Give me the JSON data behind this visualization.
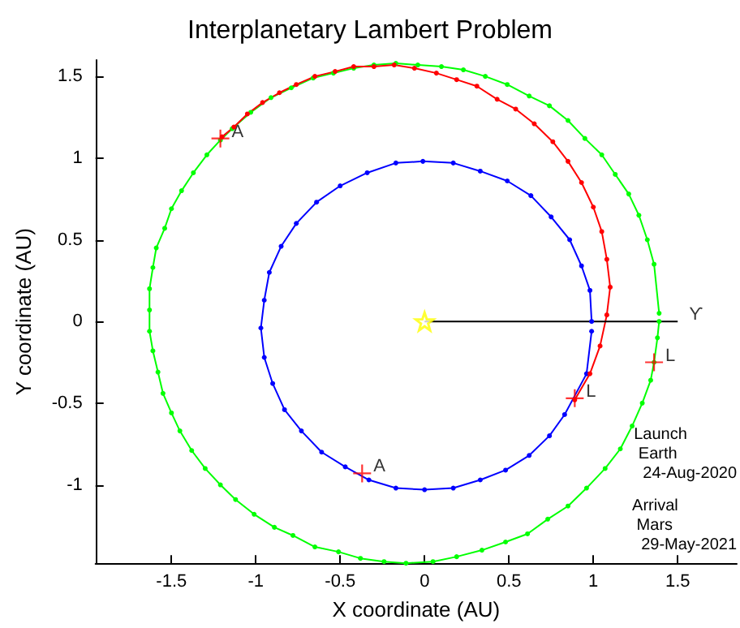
{
  "chart_data": {
    "type": "line",
    "title": "Interplanetary Lambert Problem",
    "xlabel": "X coordinate (AU)",
    "ylabel": "Y coordinate (AU)",
    "xlim": [
      -1.95,
      1.85
    ],
    "ylim": [
      -1.48,
      1.6
    ],
    "xticks": [
      -1.5,
      -1,
      -0.5,
      0,
      0.5,
      1,
      1.5
    ],
    "yticks": [
      -1,
      -0.5,
      0,
      0.5,
      1,
      1.5
    ],
    "grid": false,
    "marker": "circle",
    "line_style": "solid",
    "series": [
      {
        "color": "#0000ff",
        "x": [
          0.99,
          0.98,
          0.93,
          0.86,
          0.75,
          0.63,
          0.49,
          0.33,
          0.17,
          -0.01,
          -0.17,
          -0.34,
          -0.5,
          -0.64,
          -0.76,
          -0.85,
          -0.92,
          -0.95,
          -0.97,
          -0.95,
          -0.9,
          -0.83,
          -0.73,
          -0.61,
          -0.47,
          -0.33,
          -0.17,
          0,
          0.17,
          0.33,
          0.48,
          0.62,
          0.74,
          0.83,
          0.96,
          0.99
        ],
        "values": [
          0,
          0.19,
          0.34,
          0.5,
          0.64,
          0.77,
          0.86,
          0.92,
          0.97,
          0.98,
          0.97,
          0.91,
          0.83,
          0.73,
          0.6,
          0.46,
          0.3,
          0.13,
          -0.04,
          -0.22,
          -0.38,
          -0.54,
          -0.67,
          -0.8,
          -0.89,
          -0.97,
          -1.02,
          -1.03,
          -1.02,
          -0.97,
          -0.91,
          -0.82,
          -0.7,
          -0.57,
          -0.32,
          -0.06
        ]
      },
      {
        "color": "#00ff00",
        "x": [
          1.39,
          1.36,
          1.32,
          1.27,
          1.21,
          1.13,
          1.05,
          0.95,
          0.85,
          0.74,
          0.62,
          0.49,
          0.36,
          0.23,
          0.1,
          -0.04,
          -0.17,
          -0.3,
          -0.42,
          -0.54,
          -0.66,
          -0.79,
          -0.91,
          -1.03,
          -1.14,
          -1.21,
          -1.29,
          -1.37,
          -1.44,
          -1.5,
          -1.54,
          -1.59,
          -1.61,
          -1.63,
          -1.63,
          -1.63,
          -1.61,
          -1.58,
          -1.55,
          -1.5,
          -1.45,
          -1.38,
          -1.3,
          -1.21,
          -1.12,
          -1.01,
          -0.89,
          -0.78,
          -0.65,
          -0.51,
          -0.38,
          -0.24,
          -0.11,
          0.05,
          0.19,
          0.34,
          0.48,
          0.61,
          0.73,
          0.85,
          0.96,
          1.07,
          1.16,
          1.23,
          1.29,
          1.34,
          1.36,
          1.38,
          1.39
        ],
        "values": [
          0.05,
          0.35,
          0.5,
          0.65,
          0.78,
          0.9,
          1.02,
          1.12,
          1.23,
          1.32,
          1.38,
          1.45,
          1.5,
          1.54,
          1.56,
          1.57,
          1.58,
          1.57,
          1.55,
          1.52,
          1.49,
          1.43,
          1.37,
          1.28,
          1.18,
          1.11,
          1.02,
          0.91,
          0.8,
          0.69,
          0.57,
          0.45,
          0.33,
          0.2,
          0.07,
          -0.06,
          -0.18,
          -0.31,
          -0.44,
          -0.56,
          -0.67,
          -0.79,
          -0.9,
          -1,
          -1.09,
          -1.18,
          -1.26,
          -1.31,
          -1.38,
          -1.41,
          -1.45,
          -1.47,
          -1.48,
          -1.47,
          -1.44,
          -1.4,
          -1.35,
          -1.3,
          -1.21,
          -1.13,
          -1.02,
          -0.9,
          -0.78,
          -0.64,
          -0.5,
          -0.36,
          -0.25,
          -0.1,
          0
        ]
      },
      {
        "color": "#ff0000",
        "x": [
          0.89,
          0.98,
          1.04,
          1.08,
          1.1,
          1.08,
          1.05,
          1,
          0.93,
          0.85,
          0.76,
          0.65,
          0.54,
          0.43,
          0.31,
          0.19,
          0.07,
          -0.06,
          -0.18,
          -0.3,
          -0.42,
          -0.53,
          -0.65,
          -0.76,
          -0.86,
          -0.96,
          -1.05,
          -1.13,
          -1.2
        ],
        "values": [
          -0.48,
          -0.32,
          -0.15,
          0.04,
          0.21,
          0.38,
          0.55,
          0.7,
          0.85,
          0.98,
          1.1,
          1.21,
          1.3,
          1.36,
          1.44,
          1.48,
          1.52,
          1.55,
          1.57,
          1.56,
          1.56,
          1.53,
          1.5,
          1.45,
          1.4,
          1.34,
          1.27,
          1.19,
          1.13
        ]
      },
      {
        "type": "scatter",
        "marker": "cross",
        "color": "#ff0000",
        "x": [
          0.89,
          1.36,
          -0.37,
          -1.21
        ],
        "values": [
          -0.47,
          -0.25,
          -0.93,
          1.12
        ]
      },
      {
        "type": "scatter",
        "marker": "star",
        "color": "#ffff00",
        "x": [
          0
        ],
        "values": [
          0
        ]
      },
      {
        "color": "#000000",
        "marker": "none",
        "x": [
          0,
          1.5
        ],
        "values": [
          0,
          0
        ]
      }
    ],
    "annotations": [
      {
        "text": "L",
        "x": 0.89,
        "y": -0.47
      },
      {
        "text": "L",
        "x": 1.36,
        "y": -0.25
      },
      {
        "text": "A",
        "x": -0.37,
        "y": -0.93
      },
      {
        "text": "A",
        "x": -1.21,
        "y": 1.12
      },
      {
        "text": "ϒ",
        "x": 1.5,
        "y": 0
      },
      "Launch\n Earth\n  24-Aug-2020",
      "Arrival\n Mars\n  29-May-2021"
    ]
  }
}
